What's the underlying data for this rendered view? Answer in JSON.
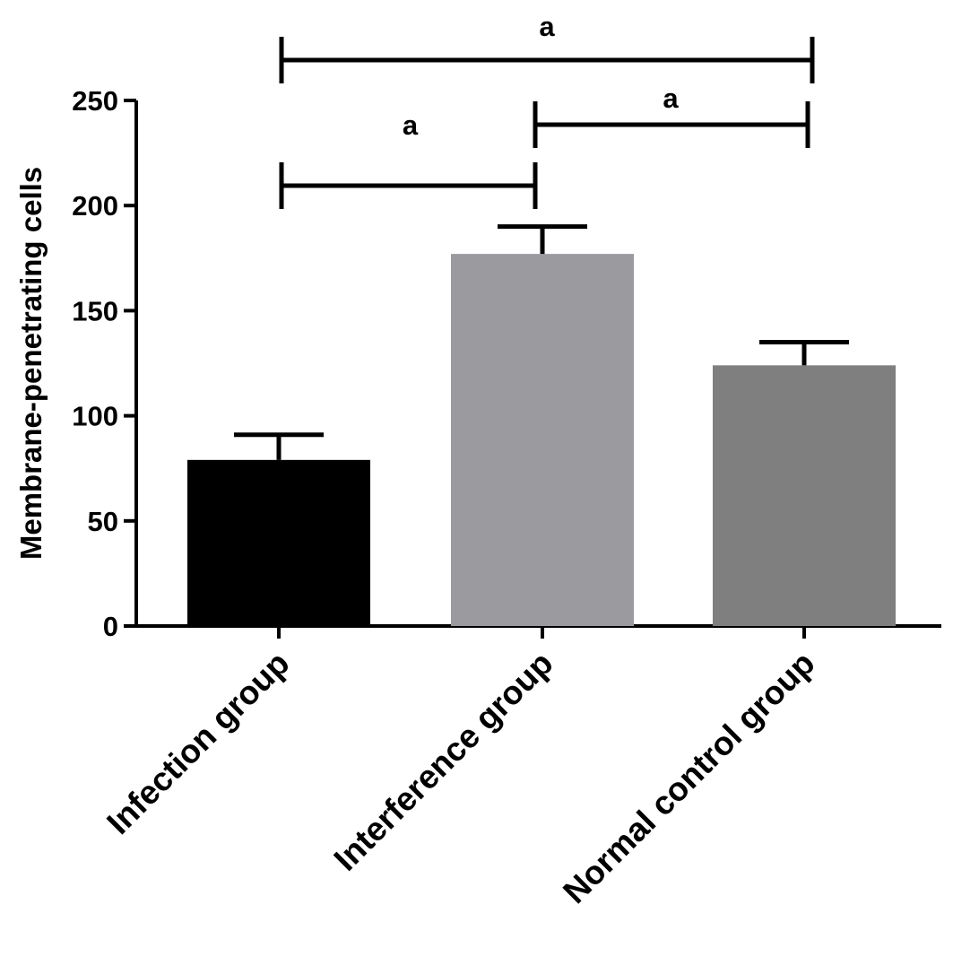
{
  "chart_data": {
    "type": "bar",
    "title": "",
    "xlabel": "",
    "ylabel": "Membrane-penetrating cells",
    "ylim": [
      0,
      250
    ],
    "yticks": [
      0,
      50,
      100,
      150,
      200,
      250
    ],
    "categories": [
      "Infection group",
      "Interference group",
      "Normal control group"
    ],
    "values": [
      79,
      177,
      124
    ],
    "errors": [
      12,
      13,
      11
    ],
    "colors": [
      "#000000",
      "#9a9a9f",
      "#7f7f7f"
    ],
    "grid": false,
    "legend": "none",
    "significance": [
      {
        "from": 0,
        "to": 1,
        "label": "a"
      },
      {
        "from": 1,
        "to": 2,
        "label": "a"
      },
      {
        "from": 0,
        "to": 2,
        "label": "a"
      }
    ]
  }
}
